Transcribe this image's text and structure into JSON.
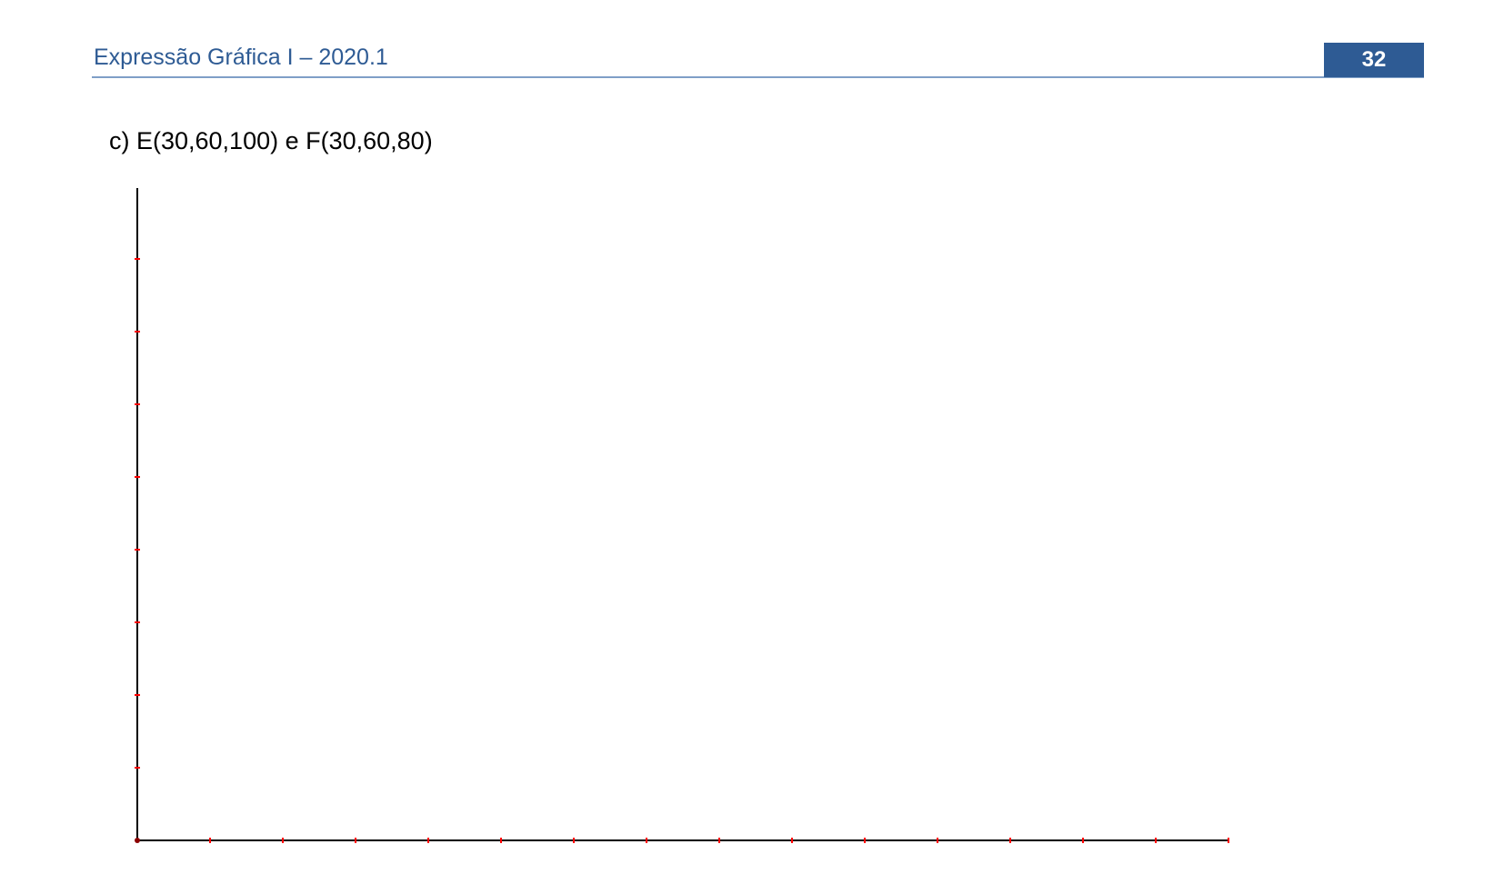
{
  "header": {
    "title": "Expressão Gráfica I – 2020.1",
    "page_number": "32"
  },
  "exercise": {
    "label": "c) E(30,60,100) e F(30,60,80)"
  },
  "colors": {
    "header_blue": "#2e5b94",
    "rule_blue": "#7f9fc7",
    "tick_red": "#ff0000",
    "axis_black": "#000000"
  },
  "axes": {
    "horizontal_tick_count": 15,
    "vertical_tick_count": 8
  }
}
